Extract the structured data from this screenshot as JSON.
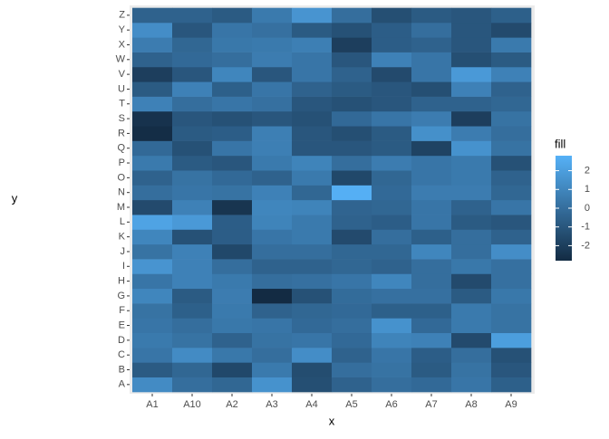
{
  "chart_data": {
    "type": "heatmap",
    "x_label": "x",
    "y_label": "y",
    "legend_title": "fill",
    "x": [
      "A1",
      "A10",
      "A2",
      "A3",
      "A4",
      "A5",
      "A6",
      "A7",
      "A8",
      "A9"
    ],
    "y": [
      "A",
      "B",
      "C",
      "D",
      "E",
      "F",
      "G",
      "H",
      "I",
      "J",
      "K",
      "L",
      "M",
      "N",
      "O",
      "P",
      "Q",
      "R",
      "S",
      "T",
      "U",
      "V",
      "W",
      "X",
      "Y",
      "Z"
    ],
    "values": [
      [
        1.2,
        0,
        -0.3,
        1.5,
        -1.3,
        -0.5,
        0,
        -0.2,
        0.3,
        -0.6
      ],
      [
        -0.8,
        -0.3,
        -1.6,
        0.5,
        -1.4,
        0,
        0.2,
        -0.8,
        0.2,
        -1.0
      ],
      [
        0.3,
        1.2,
        0.4,
        0,
        1.3,
        -0.5,
        0.3,
        -0.7,
        0,
        -1.2
      ],
      [
        0.5,
        0.2,
        -0.5,
        0.2,
        0.3,
        -0.2,
        0.9,
        0.8,
        -1.5,
        2.0
      ],
      [
        0.3,
        0,
        0.4,
        0.3,
        -0.2,
        0,
        1.5,
        -0.2,
        0.5,
        0.2
      ],
      [
        0.2,
        -0.6,
        0.5,
        -0.5,
        -0.3,
        -0.2,
        -0.6,
        -0.6,
        0.5,
        0.2
      ],
      [
        1.0,
        -0.8,
        0.6,
        -2.8,
        -1.2,
        -0.1,
        0.1,
        0.1,
        -0.8,
        0.4
      ],
      [
        0.3,
        0.8,
        0.5,
        0,
        0.1,
        0.3,
        1.0,
        0,
        -1.5,
        0.1
      ],
      [
        1.6,
        0.8,
        0,
        -0.5,
        -0.5,
        -0.3,
        -0.5,
        0,
        0.4,
        0.1
      ],
      [
        0.2,
        0.8,
        -1.6,
        0,
        0,
        -0.3,
        -0.3,
        1.0,
        0,
        1.3
      ],
      [
        1.0,
        -1.2,
        -0.7,
        0.3,
        0.5,
        -1.5,
        0,
        -0.6,
        0,
        -0.5
      ],
      [
        2.2,
        1.8,
        -0.7,
        0.9,
        0.5,
        -0.5,
        -0.7,
        0.3,
        -0.8,
        -1.0
      ],
      [
        -1.5,
        0.8,
        -2.4,
        1.0,
        0.9,
        -0.4,
        -0.3,
        0.3,
        -0.5,
        0.3
      ],
      [
        0,
        0.3,
        0.2,
        0.8,
        -0.3,
        2.7,
        -0.2,
        0.6,
        0.6,
        -0.3
      ],
      [
        -0.5,
        0.2,
        -0.2,
        -0.5,
        0.5,
        -1.6,
        -0.3,
        0.3,
        0.5,
        -0.5
      ],
      [
        0.5,
        -0.8,
        -1.0,
        0.5,
        0.9,
        0,
        0.6,
        0.3,
        0.5,
        -1.2
      ],
      [
        -0.2,
        -1.2,
        0.3,
        0.7,
        -1.0,
        -1.0,
        -0.8,
        -1.8,
        1.5,
        0.2
      ],
      [
        -2.7,
        -0.8,
        -0.7,
        0.7,
        -1.0,
        -1.3,
        -0.8,
        1.4,
        0.6,
        0
      ],
      [
        -2.5,
        -1.0,
        -1.2,
        -1.0,
        -1.2,
        -0.2,
        0.3,
        0.6,
        -2.0,
        0.2
      ],
      [
        0.8,
        0,
        0.3,
        0.1,
        -1.0,
        -1.2,
        -1.0,
        -0.5,
        -0.5,
        -0.3
      ],
      [
        -0.8,
        0.8,
        -0.6,
        0.3,
        -0.5,
        -0.8,
        -1.0,
        -1.3,
        0.8,
        -0.5
      ],
      [
        -2.0,
        -1.0,
        1.0,
        -1.0,
        0.3,
        -0.5,
        -1.5,
        0.3,
        1.8,
        0.8
      ],
      [
        -0.5,
        -0.2,
        0,
        0.6,
        0.3,
        -1.0,
        0.8,
        0.3,
        -1.3,
        -0.8
      ],
      [
        0.6,
        -0.3,
        0.4,
        0.5,
        0.7,
        -2.0,
        -0.7,
        -0.5,
        -1.0,
        0.5
      ],
      [
        1.3,
        -1.0,
        0.3,
        0.1,
        -0.8,
        -1.2,
        -0.7,
        0,
        -1.0,
        -1.5
      ],
      [
        -0.5,
        -0.5,
        -0.8,
        0.5,
        1.6,
        0,
        -1.3,
        -0.8,
        -1.0,
        -0.6
      ]
    ],
    "color_low": "#132B43",
    "color_high": "#56B1F7",
    "colorlim": [
      -2.8,
      2.8
    ],
    "colorticks": [
      -2,
      -1,
      0,
      1,
      2
    ]
  }
}
